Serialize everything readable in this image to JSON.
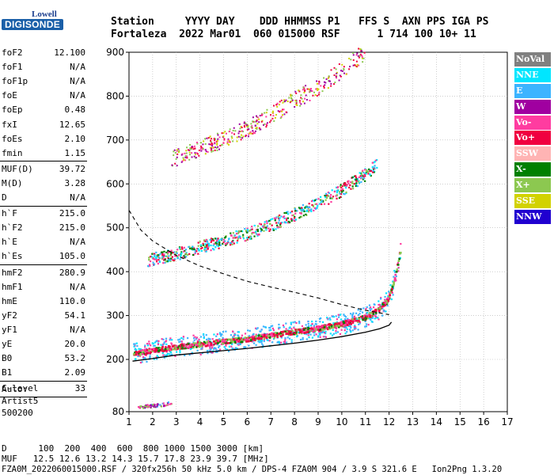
{
  "logo": {
    "top": "Lowell",
    "main": "DIGISONDE"
  },
  "header": {
    "line1": "Station     YYYY DAY    DDD HHMMSS P1   FFS S  AXN PPS IGA PS",
    "line2": "Fortaleza  2022 Mar01  060 015000 RSF      1 714 100 10+ 11"
  },
  "params": [
    {
      "k": "foF2",
      "v": "12.100"
    },
    {
      "k": "foF1",
      "v": "N/A"
    },
    {
      "k": "foF1p",
      "v": "N/A"
    },
    {
      "k": "foE",
      "v": "N/A"
    },
    {
      "k": "foEp",
      "v": "0.48"
    },
    {
      "k": "fxI",
      "v": "12.65"
    },
    {
      "k": "foEs",
      "v": "2.10"
    },
    {
      "k": "fmin",
      "v": "1.15"
    },
    {
      "k": "MUF(D)",
      "v": "39.72"
    },
    {
      "k": "M(D)",
      "v": "3.28"
    },
    {
      "k": "D",
      "v": "N/A"
    },
    {
      "k": "h`F",
      "v": "215.0"
    },
    {
      "k": "h`F2",
      "v": "215.0"
    },
    {
      "k": "h`E",
      "v": "N/A"
    },
    {
      "k": "h`Es",
      "v": "105.0"
    },
    {
      "k": "hmF2",
      "v": "280.9"
    },
    {
      "k": "hmF1",
      "v": "N/A"
    },
    {
      "k": "hmE",
      "v": "110.0"
    },
    {
      "k": "yF2",
      "v": "54.1"
    },
    {
      "k": "yF1",
      "v": "N/A"
    },
    {
      "k": "yE",
      "v": "20.0"
    },
    {
      "k": "B0",
      "v": "53.2"
    },
    {
      "k": "B1",
      "v": "2.09"
    },
    {
      "k": "C-level",
      "v": "33"
    }
  ],
  "auto": {
    "line1": "Auto:",
    "line2": "Artist5",
    "line3": "500200"
  },
  "footer": {
    "d_line": "D      100  200  400  600  800 1000 1500 3000 [km]",
    "muf_line": "MUF   12.5 12.6 13.2 14.3 15.7 17.8 23.9 39.7 [MHz]",
    "file_line": "FZA0M_2022060015000.RSF / 320fx256h 50 kHz 5.0 km / DPS-4 FZA0M 904 / 3.9 S 321.6 E   Ion2Png 1.3.20"
  },
  "legend": [
    {
      "label": "NoVal",
      "color": "#808080"
    },
    {
      "label": "NNE",
      "color": "#00e6ff"
    },
    {
      "label": "E",
      "color": "#3cb4ff"
    },
    {
      "label": "W",
      "color": "#a000a0"
    },
    {
      "label": "Vo-",
      "color": "#ff3ca0"
    },
    {
      "label": "Vo+",
      "color": "#f00040"
    },
    {
      "label": "SSW",
      "color": "#ffb4b4"
    },
    {
      "label": "X-",
      "color": "#008000"
    },
    {
      "label": "X+",
      "color": "#8cc850"
    },
    {
      "label": "SSE",
      "color": "#d2d200"
    },
    {
      "label": "NNW",
      "color": "#2000d0"
    }
  ],
  "chart_data": {
    "type": "scatter",
    "xlabel": "",
    "ylabel": "",
    "xlim": [
      1,
      17
    ],
    "ylim": [
      80,
      900
    ],
    "x_ticks": [
      1,
      2,
      3,
      4,
      5,
      6,
      7,
      8,
      9,
      10,
      11,
      12,
      13,
      14,
      15,
      16,
      17
    ],
    "y_ticks": [
      80,
      200,
      300,
      400,
      500,
      600,
      700,
      800,
      900
    ],
    "grid": true,
    "traces": {
      "F_trace": {
        "x": [
          1.2,
          2,
          3,
          4,
          5,
          6,
          7,
          8,
          9,
          10,
          11,
          11.5,
          11.9,
          12.1,
          12.3,
          12.5
        ],
        "y": [
          212,
          220,
          228,
          234,
          240,
          246,
          254,
          262,
          270,
          280,
          295,
          310,
          330,
          355,
          395,
          450
        ]
      },
      "F_echo2": {
        "x": [
          1.8,
          3,
          4,
          5,
          6,
          7,
          8,
          9,
          10,
          11,
          11.5
        ],
        "y": [
          425,
          440,
          455,
          470,
          485,
          505,
          530,
          555,
          585,
          620,
          645
        ]
      },
      "F_echo3": {
        "x": [
          2.8,
          4,
          5,
          6,
          7,
          8,
          9,
          10,
          11
        ],
        "y": [
          655,
          680,
          700,
          725,
          755,
          790,
          820,
          860,
          900
        ]
      },
      "Es_trace": {
        "x": [
          1.4,
          1.8,
          2.2,
          2.5,
          2.8
        ],
        "y": [
          90,
          92,
          94,
          96,
          100
        ]
      },
      "profile_true_height": {
        "x": [
          1.15,
          2,
          3,
          4,
          5,
          6,
          7,
          8,
          9,
          10,
          11,
          11.6,
          12.0,
          12.1
        ],
        "y": [
          196,
          202,
          210,
          215,
          220,
          225,
          231,
          237,
          244,
          252,
          262,
          270,
          278,
          285
        ]
      },
      "muf_curve_dashed": {
        "x": [
          1.0,
          1.5,
          2,
          3,
          4,
          5,
          6,
          7,
          8,
          9,
          10,
          11,
          12
        ],
        "y": [
          540,
          495,
          470,
          437,
          413,
          395,
          378,
          365,
          353,
          340,
          325,
          312,
          302
        ]
      }
    }
  }
}
